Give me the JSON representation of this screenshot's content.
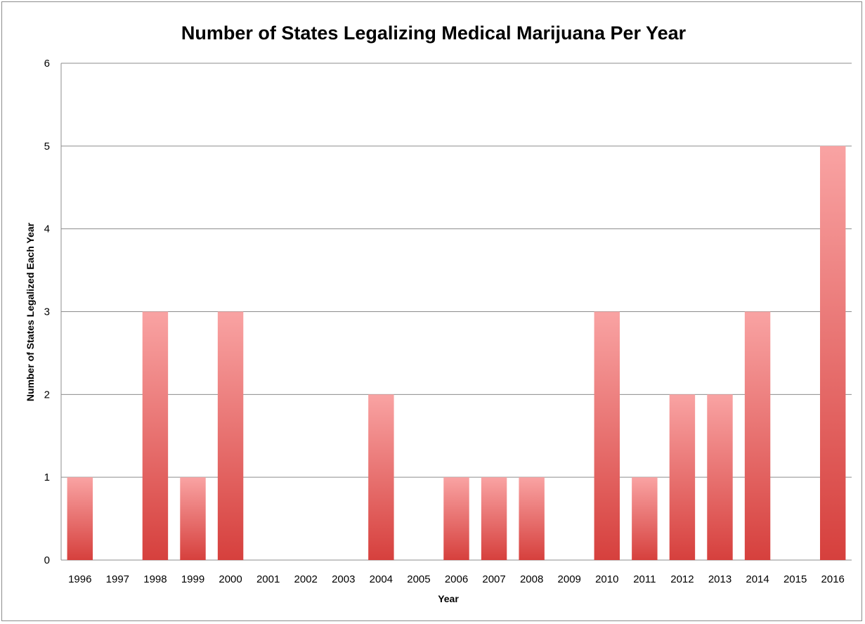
{
  "chart_data": {
    "type": "bar",
    "title": "Number of States Legalizing Medical Marijuana Per Year",
    "xlabel": "Year",
    "ylabel": "Number of States Legalized Each Year",
    "categories": [
      "1996",
      "1997",
      "1998",
      "1999",
      "2000",
      "2001",
      "2002",
      "2003",
      "2004",
      "2005",
      "2006",
      "2007",
      "2008",
      "2009",
      "2010",
      "2011",
      "2012",
      "2013",
      "2014",
      "2015",
      "2016"
    ],
    "values": [
      1,
      0,
      3,
      1,
      3,
      0,
      0,
      0,
      2,
      0,
      1,
      1,
      1,
      0,
      3,
      1,
      2,
      2,
      3,
      0,
      5
    ],
    "ylim": [
      0,
      6
    ],
    "yticks": [
      0,
      1,
      2,
      3,
      4,
      5,
      6
    ],
    "grid": true,
    "legend": "none",
    "colors": {
      "bar_top": "#f9a3a3",
      "bar_bottom": "#d6403d",
      "grid": "#8c8c8c",
      "frame": "#8c8c8c"
    }
  }
}
